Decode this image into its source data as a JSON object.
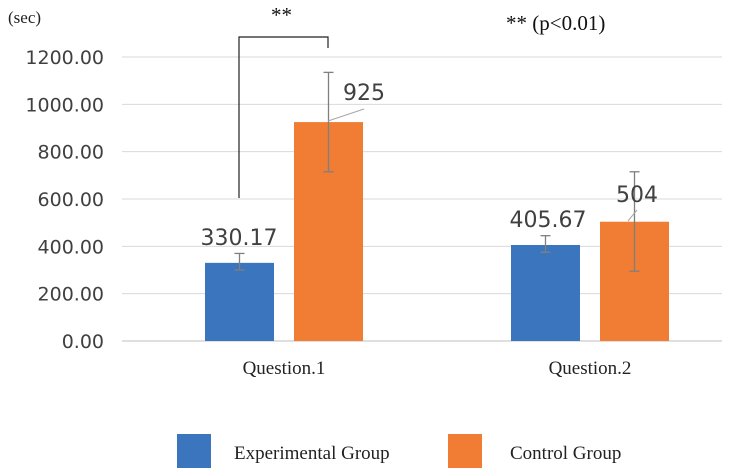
{
  "chart_data": {
    "type": "bar",
    "y_unit": "(sec)",
    "categories": [
      "Question.1",
      "Question.2"
    ],
    "series": [
      {
        "name": "Experimental Group",
        "color": "#3A75BE",
        "values": [
          330.17,
          405.67
        ],
        "labels": [
          "330.17",
          "405.67"
        ],
        "error": [
          [
            300,
            370
          ],
          [
            375,
            445
          ]
        ]
      },
      {
        "name": "Control Group",
        "color": "#F07D33",
        "values": [
          925,
          504
        ],
        "labels": [
          "925",
          "504"
        ],
        "error": [
          [
            715,
            1135
          ],
          [
            295,
            715
          ]
        ]
      }
    ],
    "ylim": [
      0,
      1200
    ],
    "yticks": [
      0,
      200,
      400,
      600,
      800,
      1000,
      1200
    ],
    "ytick_labels": [
      "0.00",
      "200.00",
      "400.00",
      "600.00",
      "800.00",
      "1000.00",
      "1200.00"
    ],
    "grid": true,
    "legend_position": "bottom",
    "significance": {
      "bracket_mark": "**",
      "note": "** (p<0.01)"
    }
  }
}
